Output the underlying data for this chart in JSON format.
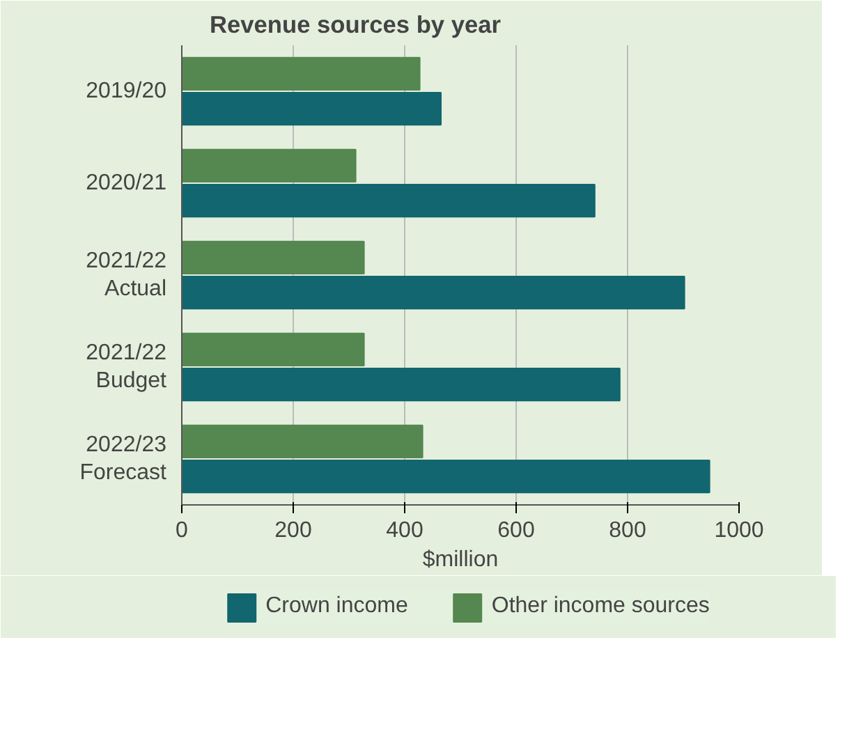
{
  "chart_data": {
    "type": "bar",
    "orientation": "horizontal",
    "title": "Revenue sources by year",
    "xlabel": "$million",
    "categories": [
      "2019/20",
      "2020/21",
      "2021/22\nActual",
      "2021/22\nBudget",
      "2022/23\nForecast"
    ],
    "series": [
      {
        "name": "Crown income",
        "color": "#12666f",
        "values": [
          465,
          741,
          902,
          786,
          947
        ]
      },
      {
        "name": "Other income sources",
        "color": "#558751",
        "values": [
          427,
          312,
          327,
          327,
          432
        ]
      }
    ],
    "xlim": [
      0,
      1000
    ],
    "xticks": [
      0,
      200,
      400,
      600,
      800,
      1000
    ],
    "grid": "x",
    "legend": "bottom"
  }
}
